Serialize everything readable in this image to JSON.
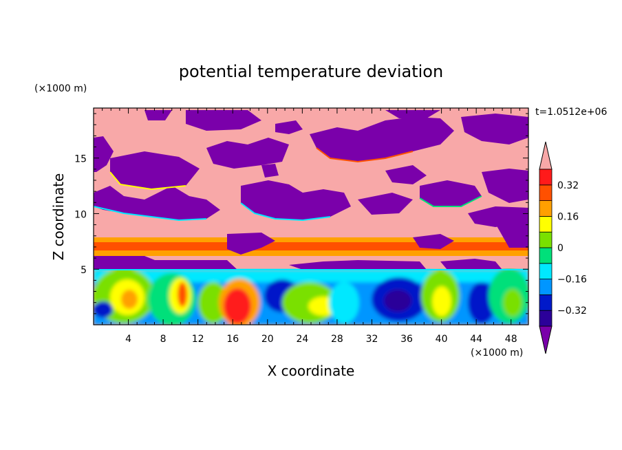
{
  "chart_data": {
    "type": "heatmap",
    "title": "potential temperature deviation",
    "xlabel": "X coordinate",
    "ylabel": "Z coordinate",
    "x_unit": "(×1000 m)",
    "y_unit": "(×1000 m)",
    "time_label": "t=1.0512e+06",
    "xlim": [
      0,
      50
    ],
    "ylim": [
      0,
      19.5
    ],
    "x_ticks": [
      4,
      8,
      12,
      16,
      20,
      24,
      28,
      32,
      36,
      40,
      44,
      48
    ],
    "y_ticks": [
      5,
      10,
      15
    ],
    "colorbar": {
      "levels": [
        -0.4,
        -0.32,
        -0.24,
        -0.16,
        -0.08,
        0,
        0.08,
        0.16,
        0.24,
        0.32,
        0.4
      ],
      "labels": [
        "0.32",
        "0.16",
        "0",
        "−0.16",
        "−0.32"
      ],
      "label_values": [
        0.32,
        0.16,
        0,
        -0.16,
        -0.32
      ],
      "colors": [
        "#7a00aa",
        "#2b0099",
        "#0019c9",
        "#0096ff",
        "#00e8ff",
        "#00e07a",
        "#7ae000",
        "#ffff00",
        "#ffa000",
        "#ff5000",
        "#ff1a1a",
        "#f8a8a8"
      ]
    }
  }
}
